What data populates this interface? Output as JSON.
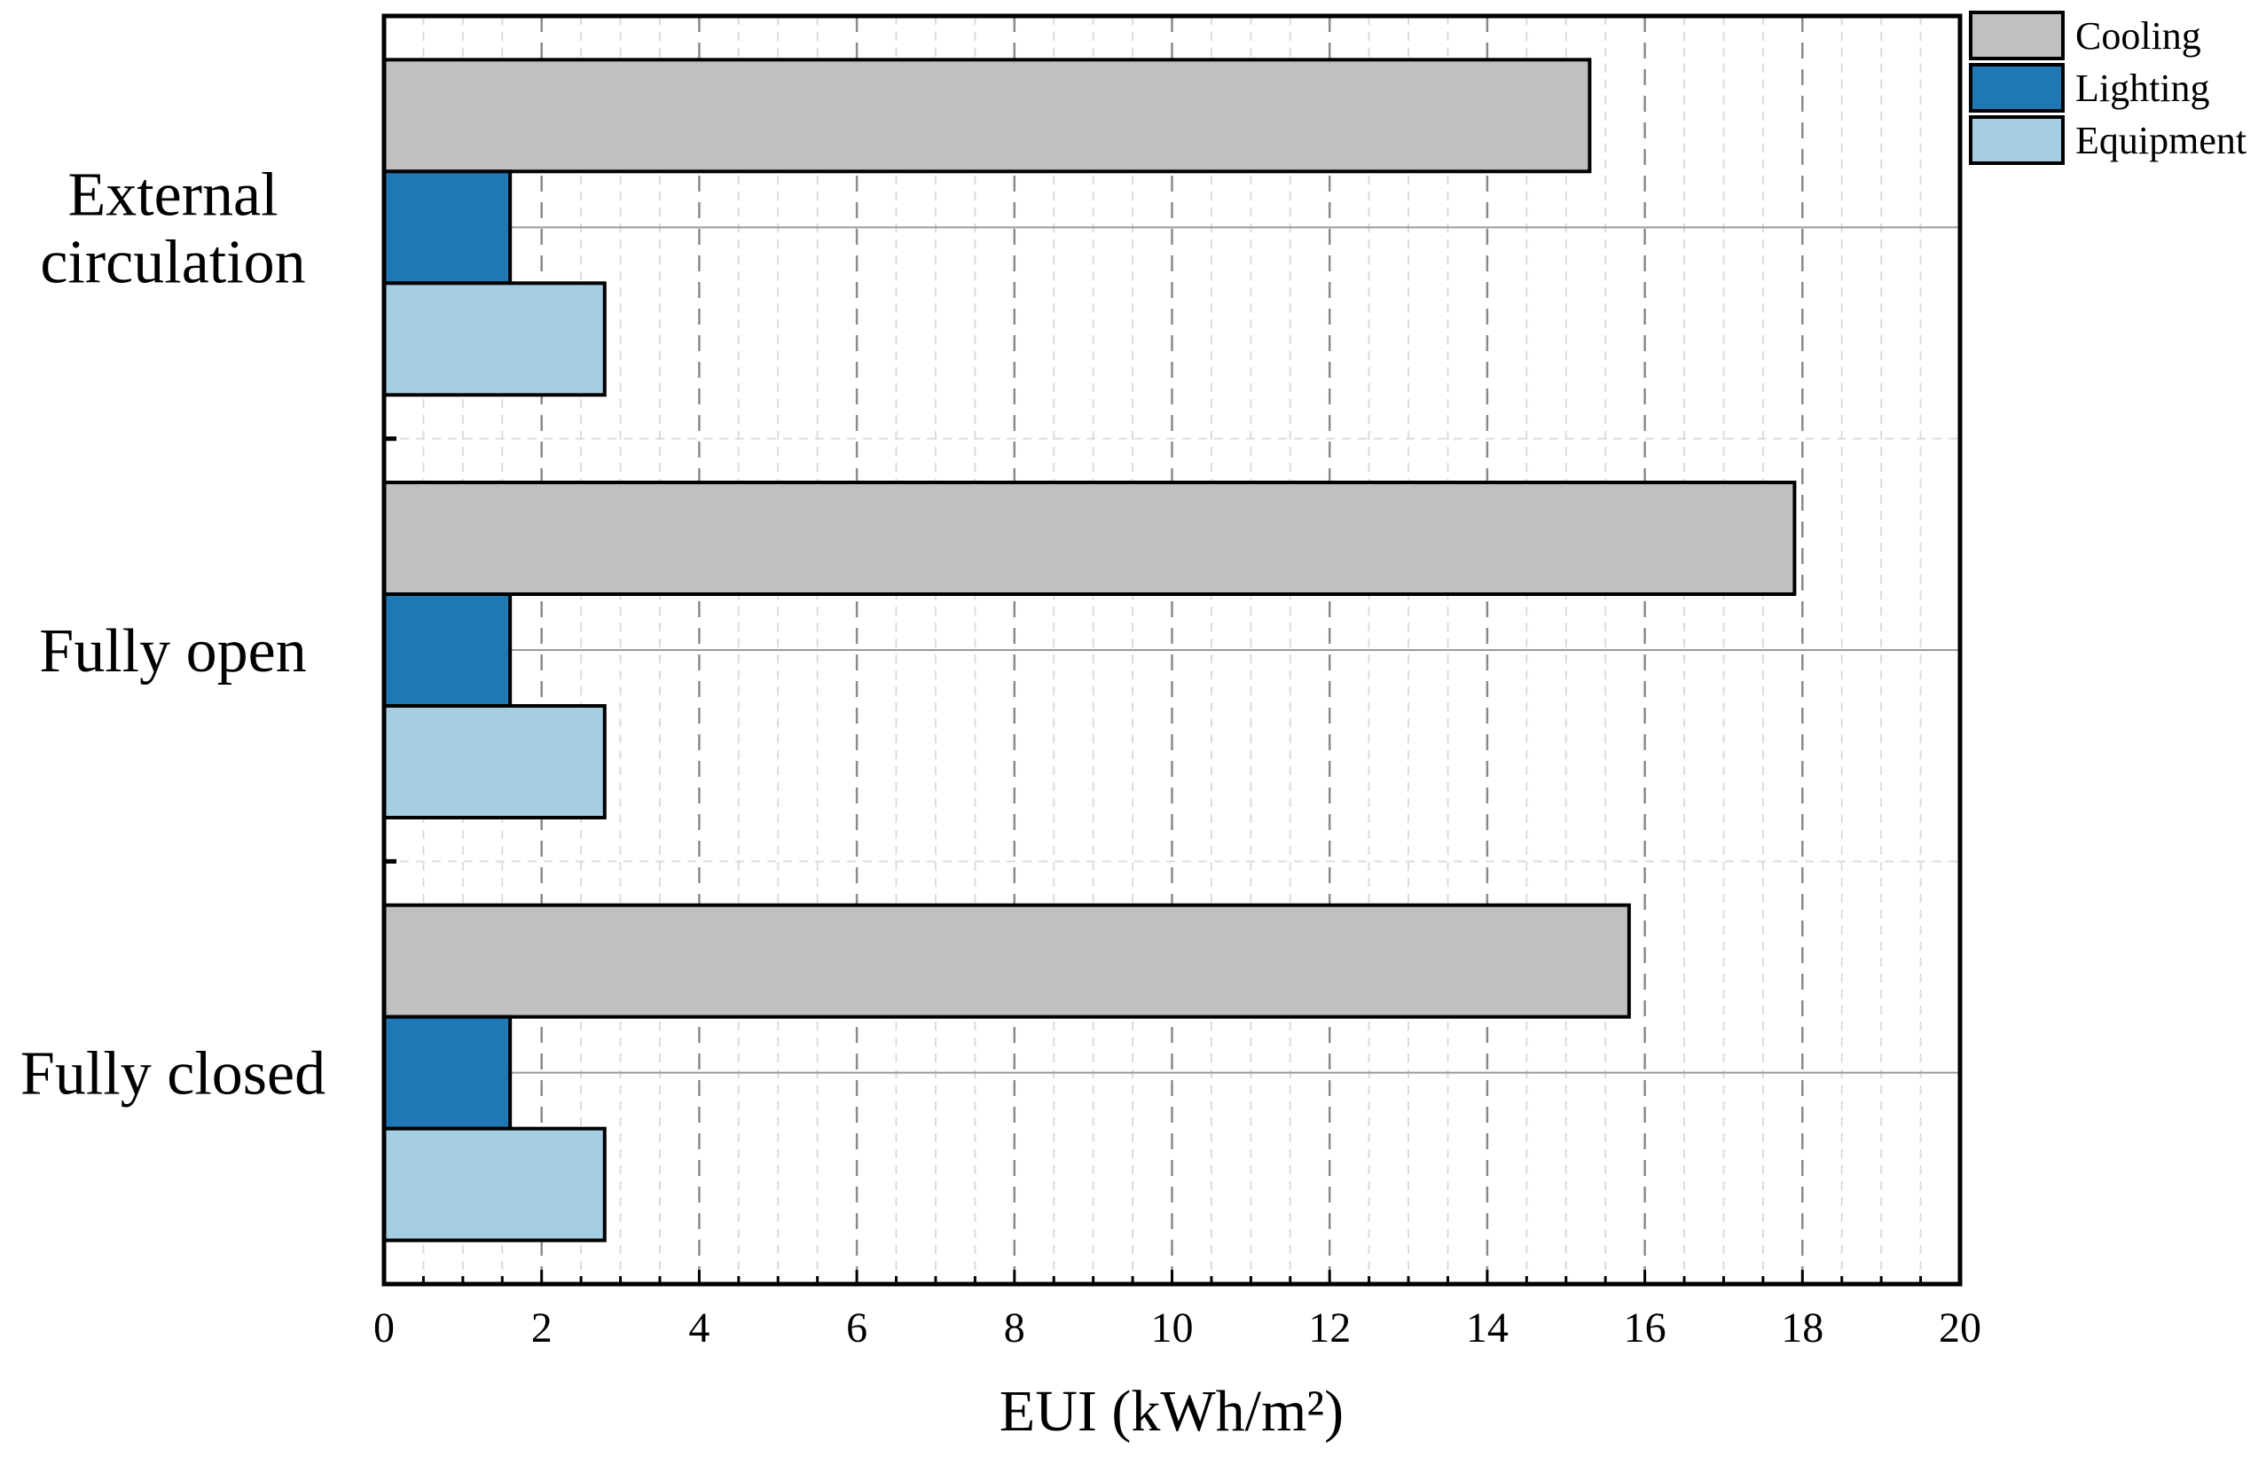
{
  "chart_data": {
    "type": "bar",
    "orientation": "horizontal",
    "categories": [
      "External circulation",
      "Fully open",
      "Fully closed"
    ],
    "category_lines": [
      [
        "External",
        "circulation"
      ],
      [
        "Fully open"
      ],
      [
        "Fully closed"
      ]
    ],
    "series": [
      {
        "name": "Cooling",
        "color": "#c0c0c0",
        "values": [
          15.3,
          17.9,
          15.8
        ]
      },
      {
        "name": "Lighting",
        "color": "#1f77b4",
        "values": [
          1.6,
          1.6,
          1.6
        ]
      },
      {
        "name": "Equipment",
        "color": "#a6cee3",
        "values": [
          2.8,
          2.8,
          2.8
        ]
      }
    ],
    "xlabel": "EUI (kWh/m²)",
    "ylabel": "",
    "xlim": [
      0,
      20
    ],
    "xticks": [
      "0",
      "2",
      "4",
      "6",
      "8",
      "10",
      "12",
      "14",
      "16",
      "18",
      "20"
    ],
    "grid": true,
    "legend_position": "top-right"
  }
}
